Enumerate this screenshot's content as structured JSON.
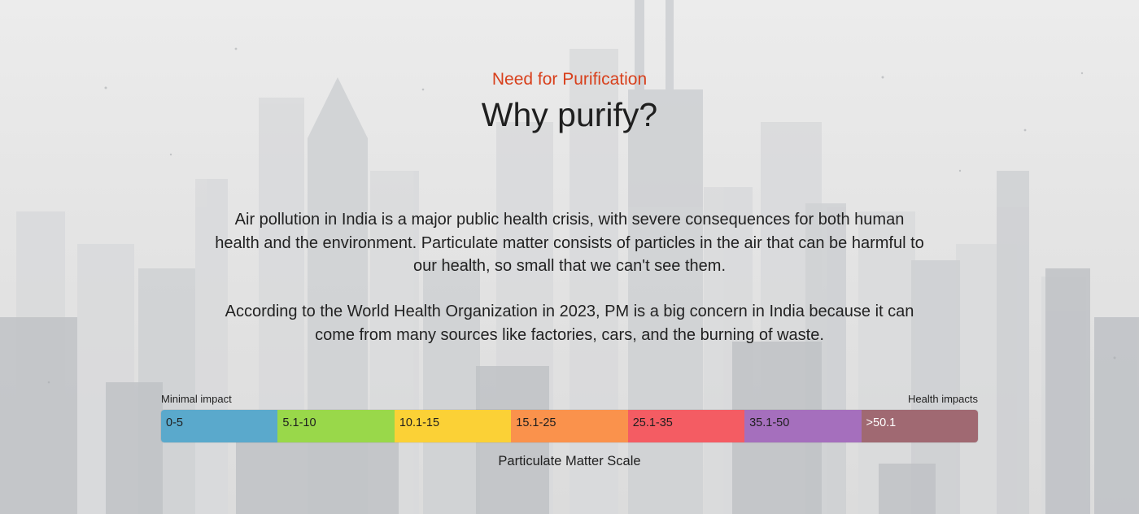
{
  "section": {
    "eyebrow": "Need for Purification",
    "title": "Why purify?",
    "paragraphs": [
      "Air pollution in India is a major public health crisis, with severe consequences for both human health and the environment. Particulate matter consists of particles in the air that can be harmful to our health, so small that we can't see them.",
      "According to the World Health Organization in 2023, PM is a big concern in India because it can come from many sources like factories, cars, and the burning of waste."
    ]
  },
  "scale": {
    "left_label": "Minimal impact",
    "right_label": "Health impacts",
    "caption": "Particulate Matter Scale",
    "segments": [
      {
        "label": "0-5",
        "color": "#5aa9cc"
      },
      {
        "label": "5.1-10",
        "color": "#99d84a"
      },
      {
        "label": "10.1-15",
        "color": "#fbd136"
      },
      {
        "label": "15.1-25",
        "color": "#fa924c"
      },
      {
        "label": "25.1-35",
        "color": "#f45c63"
      },
      {
        "label": "35.1-50",
        "color": "#a56fbd"
      },
      {
        "label": ">50.1",
        "color": "#a06972"
      }
    ]
  },
  "colors": {
    "accent": "#d8401c",
    "background": "#e6e6e6"
  }
}
